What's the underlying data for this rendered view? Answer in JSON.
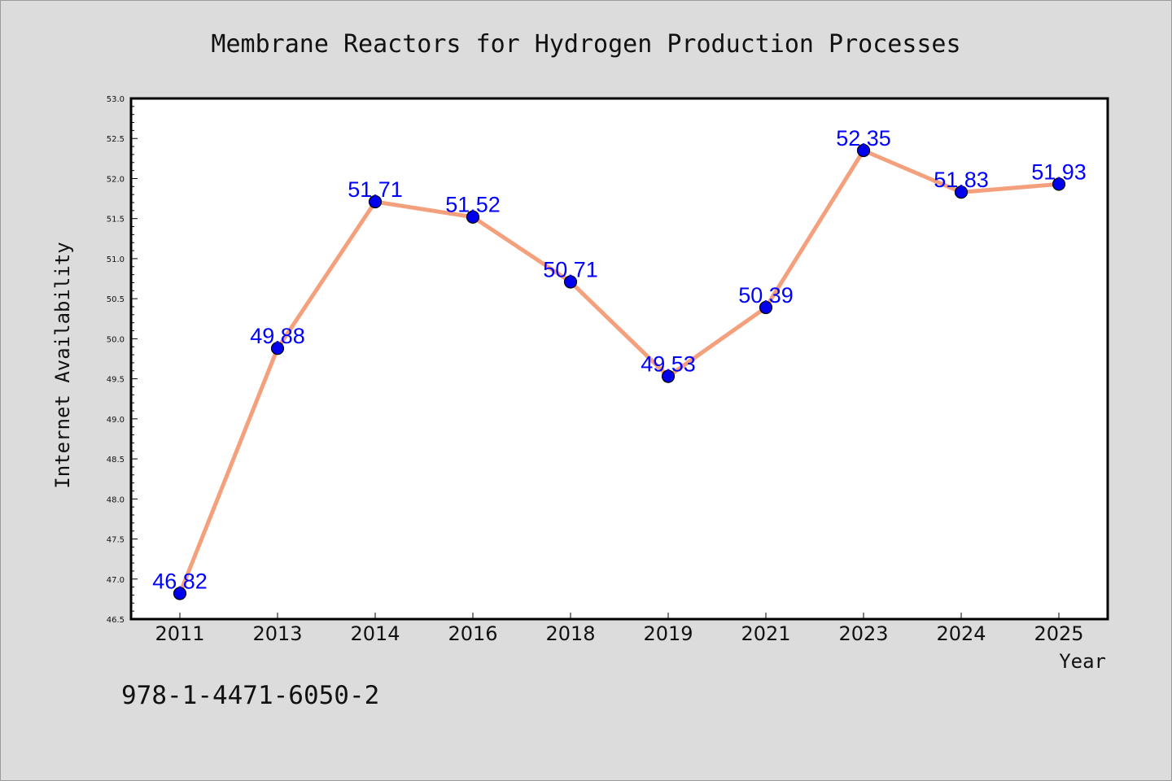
{
  "chart_data": {
    "type": "line",
    "title": "Membrane Reactors for Hydrogen Production Processes",
    "xlabel": "Year",
    "ylabel": "Internet Availability",
    "categories": [
      "2011",
      "2013",
      "2014",
      "2016",
      "2018",
      "2019",
      "2021",
      "2023",
      "2024",
      "2025"
    ],
    "series": [
      {
        "values": [
          46.82,
          49.88,
          51.71,
          51.52,
          50.71,
          49.53,
          50.39,
          52.35,
          51.83,
          51.93
        ],
        "labels": [
          "46.82",
          "49.88",
          "51.71",
          "51.52",
          "50.71",
          "49.53",
          "50.39",
          "52.35",
          "51.83",
          "51.93"
        ],
        "line_color": "#f5a07c",
        "marker_color": "#0000ee"
      }
    ],
    "ylim": [
      46.5,
      53.0
    ],
    "yticks": [
      "46.5",
      "47.0",
      "47.5",
      "48.0",
      "48.5",
      "49.0",
      "49.5",
      "50.0",
      "50.5",
      "51.0",
      "51.5",
      "52.0",
      "52.5",
      "53.0"
    ],
    "grid": false,
    "legend": "none"
  },
  "footer": {
    "text": "978-1-4471-6050-2"
  },
  "colors": {
    "background": "#dcdcdc",
    "plot_background": "#ffffff",
    "label_color": "#0000ff"
  }
}
